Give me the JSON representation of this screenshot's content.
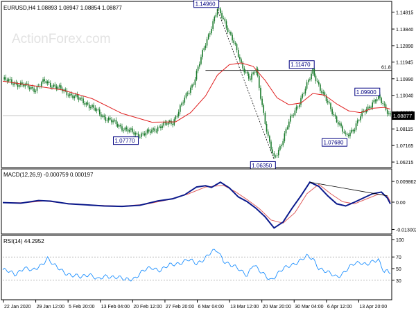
{
  "header": {
    "symbol_line": "EURUSD,H4  1.08893 1.08947 1.08854 1.08877"
  },
  "watermark": "ActionForex.com",
  "colors": {
    "candle": "#1a7a2c",
    "ema": "#e02020",
    "macd": "#0b1a8c",
    "signal": "#e06060",
    "rsi": "#1e90ff",
    "level": "#000000",
    "label_bg": "#000080"
  },
  "chart_data": [
    {
      "type": "candlestick",
      "title": "EURUSD,H4",
      "ohlc_last": {
        "open": 1.08893,
        "high": 1.08947,
        "low": 1.08854,
        "close": 1.08877
      },
      "ylim": [
        1.0598,
        1.1519
      ],
      "y_ticks": [
        1.14815,
        1.1384,
        1.1289,
        1.11945,
        1.1099,
        1.1004,
        1.09065,
        1.08115,
        1.07165,
        1.06215
      ],
      "y_tick_labels": [
        "1.14815",
        "1.13840",
        "1.12890",
        "1.11945",
        "1.10990",
        "1.10040",
        "1.09065",
        "1.08115",
        "1.07165",
        "1.06215"
      ],
      "current_price_label": "1.08877",
      "x_tick_labels": [
        "22 Jan 2020",
        "29 Jan 12:00",
        "5 Feb 20:00",
        "13 Feb 04:00",
        "20 Feb 12:00",
        "27 Feb 20:00",
        "6 Mar 04:00",
        "13 Mar 12:00",
        "20 Mar 20:00",
        "30 Mar 04:00",
        "6 Apr 12:00",
        "13 Apr 20:00"
      ],
      "price_path": [
        [
          0,
          1.1095
        ],
        [
          6,
          1.1065
        ],
        [
          11,
          1.104
        ],
        [
          14,
          1.1085
        ],
        [
          17,
          1.106
        ],
        [
          22,
          1.1015
        ],
        [
          28,
          1.096
        ],
        [
          34,
          1.088
        ],
        [
          40,
          1.082
        ],
        [
          45,
          1.0778
        ],
        [
          49,
          1.079
        ],
        [
          53,
          1.083
        ],
        [
          57,
          1.085
        ],
        [
          60,
          1.095
        ],
        [
          64,
          1.108
        ],
        [
          68,
          1.13
        ],
        [
          71,
          1.145
        ],
        [
          72,
          1.1496
        ],
        [
          74,
          1.144
        ],
        [
          77,
          1.133
        ],
        [
          80,
          1.118
        ],
        [
          83,
          1.11
        ],
        [
          85,
          1.115
        ],
        [
          87,
          1.095
        ],
        [
          89,
          1.076
        ],
        [
          91,
          1.0636
        ],
        [
          93,
          1.071
        ],
        [
          96,
          1.085
        ],
        [
          99,
          1.095
        ],
        [
          102,
          1.106
        ],
        [
          104,
          1.1147
        ],
        [
          107,
          1.102
        ],
        [
          110,
          1.093
        ],
        [
          113,
          1.083
        ],
        [
          115,
          1.0768
        ],
        [
          118,
          1.082
        ],
        [
          121,
          1.091
        ],
        [
          124,
          1.096
        ],
        [
          126,
          1.099
        ],
        [
          128,
          1.0945
        ],
        [
          130,
          1.0888
        ]
      ],
      "ema_path": [
        [
          0,
          1.1085
        ],
        [
          10,
          1.106
        ],
        [
          20,
          1.1035
        ],
        [
          30,
          1.0985
        ],
        [
          40,
          1.09
        ],
        [
          50,
          1.085
        ],
        [
          58,
          1.0852
        ],
        [
          63,
          1.0905
        ],
        [
          68,
          1.1
        ],
        [
          72,
          1.112
        ],
        [
          76,
          1.118
        ],
        [
          80,
          1.119
        ],
        [
          84,
          1.117
        ],
        [
          88,
          1.109
        ],
        [
          92,
          1.099
        ],
        [
          96,
          1.095
        ],
        [
          100,
          1.096
        ],
        [
          104,
          1.1015
        ],
        [
          108,
          1.1005
        ],
        [
          112,
          1.0955
        ],
        [
          116,
          1.0915
        ],
        [
          120,
          1.0905
        ],
        [
          124,
          1.093
        ],
        [
          128,
          1.0935
        ],
        [
          130,
          1.0925
        ]
      ],
      "horizontal_levels": [
        {
          "value": 1.1147,
          "label": "61.8"
        },
        {
          "value": 1.08877,
          "label": ""
        }
      ],
      "trendlines": [
        {
          "from": [
            72,
            1.1496
          ],
          "to": [
            91,
            1.0636
          ],
          "style": "dotted"
        }
      ],
      "annotations": [
        {
          "text": "1.14960",
          "x": 72,
          "y": 1.1496,
          "pos": "above-left"
        },
        {
          "text": "1.11470",
          "x": 104,
          "y": 1.1147,
          "pos": "above-left"
        },
        {
          "text": "1.09900",
          "x": 126,
          "y": 1.099,
          "pos": "above-left"
        },
        {
          "text": "1.07770",
          "x": 45,
          "y": 1.0778,
          "pos": "below-left"
        },
        {
          "text": "1.07680",
          "x": 115,
          "y": 1.0768,
          "pos": "below-left"
        },
        {
          "text": "1.06350",
          "x": 91,
          "y": 1.0636,
          "pos": "below-left"
        }
      ]
    },
    {
      "type": "line",
      "title": "MACD(12,26,9) -0.000759 0.000197",
      "ylim": [
        -0.0145,
        0.0112
      ],
      "y_ticks": [
        0.009862,
        0.0,
        -0.013002
      ],
      "y_tick_labels": [
        "0.009862",
        "0.00",
        "-0.013002"
      ],
      "series": [
        {
          "values": [
            [
              0,
              -0.0002
            ],
            [
              6,
              -0.0005
            ],
            [
              12,
              0.0008
            ],
            [
              16,
              0.0005
            ],
            [
              22,
              -0.0008
            ],
            [
              28,
              -0.0013
            ],
            [
              34,
              -0.0018
            ],
            [
              40,
              -0.002
            ],
            [
              46,
              -0.0015
            ],
            [
              52,
              0.0006
            ],
            [
              57,
              0.0016
            ],
            [
              61,
              0.0035
            ],
            [
              65,
              0.0072
            ],
            [
              68,
              0.0078
            ],
            [
              70,
              0.007
            ],
            [
              73,
              0.0095
            ],
            [
              76,
              0.0068
            ],
            [
              79,
              0.0025
            ],
            [
              82,
              0.0002
            ],
            [
              85,
              -0.003
            ],
            [
              88,
              -0.007
            ],
            [
              91,
              -0.0123
            ],
            [
              94,
              -0.0095
            ],
            [
              97,
              -0.003
            ],
            [
              100,
              0.003
            ],
            [
              103,
              0.0095
            ],
            [
              106,
              0.0075
            ],
            [
              109,
              0.003
            ],
            [
              112,
              -0.0008
            ],
            [
              115,
              -0.0018
            ],
            [
              118,
              0.0
            ],
            [
              121,
              0.002
            ],
            [
              124,
              0.004
            ],
            [
              127,
              0.0048
            ],
            [
              129,
              0.002
            ],
            [
              130,
              -0.0008
            ]
          ]
        },
        {
          "values": [
            [
              0,
              -0.0003
            ],
            [
              8,
              -0.0002
            ],
            [
              14,
              0.0006
            ],
            [
              20,
              -0.0004
            ],
            [
              30,
              -0.0014
            ],
            [
              40,
              -0.0019
            ],
            [
              48,
              -0.001
            ],
            [
              55,
              0.001
            ],
            [
              62,
              0.0038
            ],
            [
              68,
              0.0072
            ],
            [
              74,
              0.008
            ],
            [
              78,
              0.005
            ],
            [
              82,
              0.0012
            ],
            [
              86,
              -0.003
            ],
            [
              90,
              -0.0085
            ],
            [
              94,
              -0.01
            ],
            [
              98,
              -0.005
            ],
            [
              102,
              0.004
            ],
            [
              106,
              0.0085
            ],
            [
              110,
              0.004
            ],
            [
              114,
              0.0002
            ],
            [
              118,
              -0.0008
            ],
            [
              122,
              0.0015
            ],
            [
              126,
              0.0038
            ],
            [
              129,
              0.003
            ],
            [
              130,
              0.0002
            ]
          ]
        }
      ],
      "trendlines": [
        {
          "from": [
            103,
            0.0095
          ],
          "to": [
            129,
            0.003
          ],
          "style": "solid"
        }
      ]
    },
    {
      "type": "line",
      "title": "RSI(14) 44.2952",
      "ylim": [
        0,
        100
      ],
      "y_ticks": [
        100,
        70,
        50,
        30
      ],
      "y_tick_labels": [
        "100",
        "70",
        "50",
        "30"
      ],
      "levels": [
        70,
        30
      ],
      "series": [
        {
          "values": [
            [
              0,
              48
            ],
            [
              4,
              40
            ],
            [
              7,
              52
            ],
            [
              10,
              45
            ],
            [
              13,
              58
            ],
            [
              15,
              68
            ],
            [
              17,
              55
            ],
            [
              20,
              47
            ],
            [
              23,
              38
            ],
            [
              26,
              35
            ],
            [
              29,
              42
            ],
            [
              32,
              30
            ],
            [
              35,
              38
            ],
            [
              38,
              36
            ],
            [
              41,
              30
            ],
            [
              44,
              34
            ],
            [
              47,
              45
            ],
            [
              50,
              52
            ],
            [
              53,
              48
            ],
            [
              56,
              55
            ],
            [
              59,
              60
            ],
            [
              62,
              65
            ],
            [
              65,
              58
            ],
            [
              68,
              70
            ],
            [
              70,
              78
            ],
            [
              72,
              80
            ],
            [
              74,
              65
            ],
            [
              77,
              55
            ],
            [
              80,
              45
            ],
            [
              82,
              40
            ],
            [
              84,
              58
            ],
            [
              86,
              45
            ],
            [
              88,
              38
            ],
            [
              90,
              32
            ],
            [
              92,
              40
            ],
            [
              94,
              48
            ],
            [
              96,
              55
            ],
            [
              98,
              60
            ],
            [
              100,
              64
            ],
            [
              102,
              70
            ],
            [
              104,
              68
            ],
            [
              106,
              52
            ],
            [
              108,
              45
            ],
            [
              110,
              40
            ],
            [
              112,
              37
            ],
            [
              114,
              42
            ],
            [
              116,
              50
            ],
            [
              118,
              58
            ],
            [
              120,
              62
            ],
            [
              122,
              58
            ],
            [
              124,
              60
            ],
            [
              126,
              64
            ],
            [
              127,
              55
            ],
            [
              128,
              46
            ],
            [
              129,
              48
            ],
            [
              130,
              44
            ]
          ]
        }
      ]
    }
  ]
}
